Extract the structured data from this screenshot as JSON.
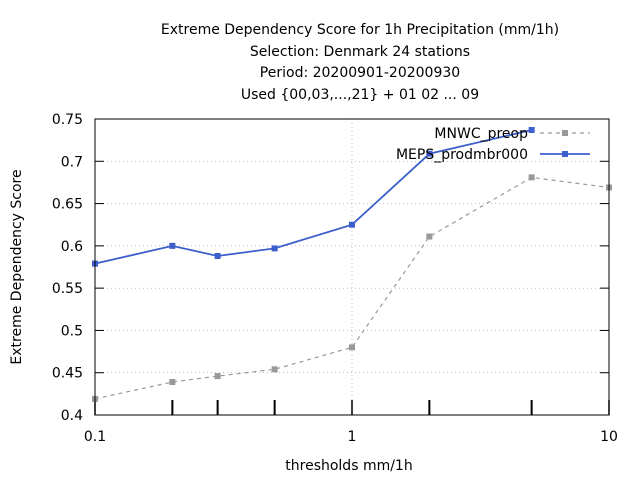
{
  "chart_data": {
    "type": "line",
    "title": "Extreme Dependency Score  for 1h Precipitation (mm/1h)",
    "subtitle_lines": [
      "Selection: Denmark     24 stations",
      "Period: 20200901-20200930",
      "Used {00,03,...,21} + 01 02 ... 09"
    ],
    "xlabel": "thresholds mm/1h",
    "ylabel": "Extreme Dependency Score",
    "x_scale": "log",
    "xlim": [
      0.1,
      10
    ],
    "ylim": [
      0.4,
      0.75
    ],
    "x_ticks": [
      0.1,
      1,
      10
    ],
    "x_tick_labels": [
      "0.1",
      "1",
      "10"
    ],
    "x_minor_ticks": [
      0.2,
      0.3,
      0.5,
      2,
      5
    ],
    "y_ticks": [
      0.4,
      0.45,
      0.5,
      0.55,
      0.6,
      0.65,
      0.7,
      0.75
    ],
    "y_tick_labels": [
      "0.4",
      "0.45",
      "0.5",
      "0.55",
      "0.6",
      "0.65",
      "0.7",
      "0.75"
    ],
    "grid": true,
    "legend_position": "top-right",
    "series": [
      {
        "name": "MNWC_preop",
        "color": "#999999",
        "dashed": true,
        "x": [
          0.1,
          0.2,
          0.3,
          0.5,
          1,
          2,
          5,
          10
        ],
        "values": [
          0.419,
          0.439,
          0.446,
          0.454,
          0.48,
          0.611,
          0.681,
          0.669
        ]
      },
      {
        "name": "MEPS_prodmbr000",
        "color": "#3c5fcc",
        "dashed": false,
        "x": [
          0.1,
          0.2,
          0.3,
          0.5,
          1,
          2,
          5
        ],
        "values": [
          0.579,
          0.6,
          0.588,
          0.597,
          0.625,
          0.709,
          0.737
        ]
      }
    ]
  }
}
